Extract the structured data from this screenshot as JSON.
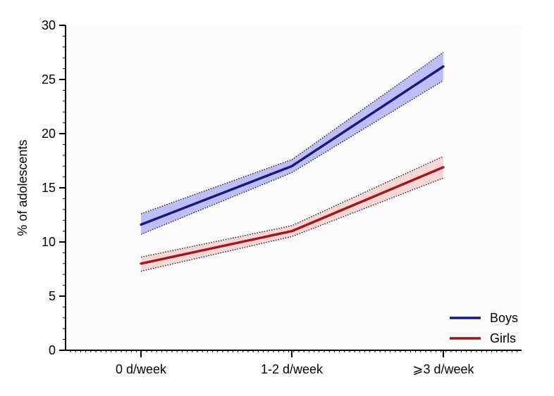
{
  "chart_data": {
    "type": "line",
    "title": "",
    "xlabel": "",
    "ylabel": "% of adolescents",
    "categories": [
      "0 d/week",
      "1-2 d/week",
      "⩾3 d/week"
    ],
    "ylim": [
      0,
      30
    ],
    "yticks": [
      0,
      5,
      10,
      15,
      20,
      25,
      30
    ],
    "grid": false,
    "legend_position": "bottom-right",
    "series": [
      {
        "name": "Boys",
        "color": "#1a1a7e",
        "band_color": "#b3b3f5",
        "values": [
          11.6,
          17.0,
          26.2
        ],
        "lower": [
          10.7,
          16.4,
          24.9
        ],
        "upper": [
          12.6,
          17.6,
          27.5
        ]
      },
      {
        "name": "Girls",
        "color": "#a01818",
        "band_color": "#f8cfcf",
        "values": [
          8.0,
          11.0,
          16.9
        ],
        "lower": [
          7.3,
          10.5,
          15.9
        ],
        "upper": [
          8.6,
          11.5,
          17.9
        ]
      }
    ]
  }
}
